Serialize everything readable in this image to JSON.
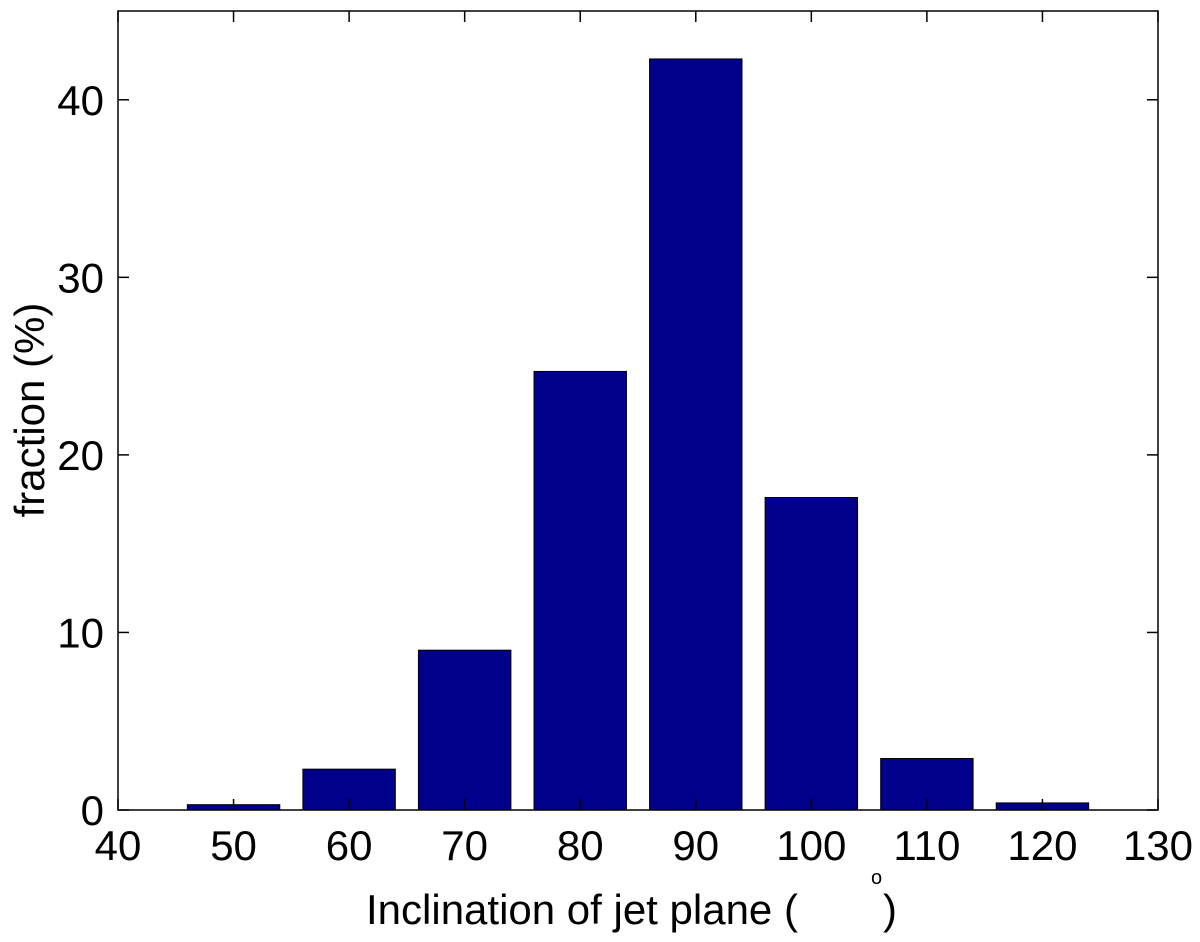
{
  "chart_data": {
    "type": "bar",
    "x": [
      50,
      60,
      70,
      80,
      90,
      100,
      110,
      120
    ],
    "values": [
      0.3,
      2.3,
      9.0,
      24.7,
      42.3,
      17.6,
      2.9,
      0.4
    ],
    "xlabel": "Inclination of jet plane (",
    "xlabel_degree": "o",
    "xlabel_close": ")",
    "ylabel": "fraction (%)",
    "xlim": [
      40,
      130
    ],
    "ylim": [
      0,
      45
    ],
    "xticks": [
      40,
      50,
      60,
      70,
      80,
      90,
      100,
      110,
      120,
      130
    ],
    "yticks": [
      0,
      10,
      20,
      30,
      40
    ],
    "bar_width": 8,
    "bar_color": "#00008B",
    "grid": false
  }
}
